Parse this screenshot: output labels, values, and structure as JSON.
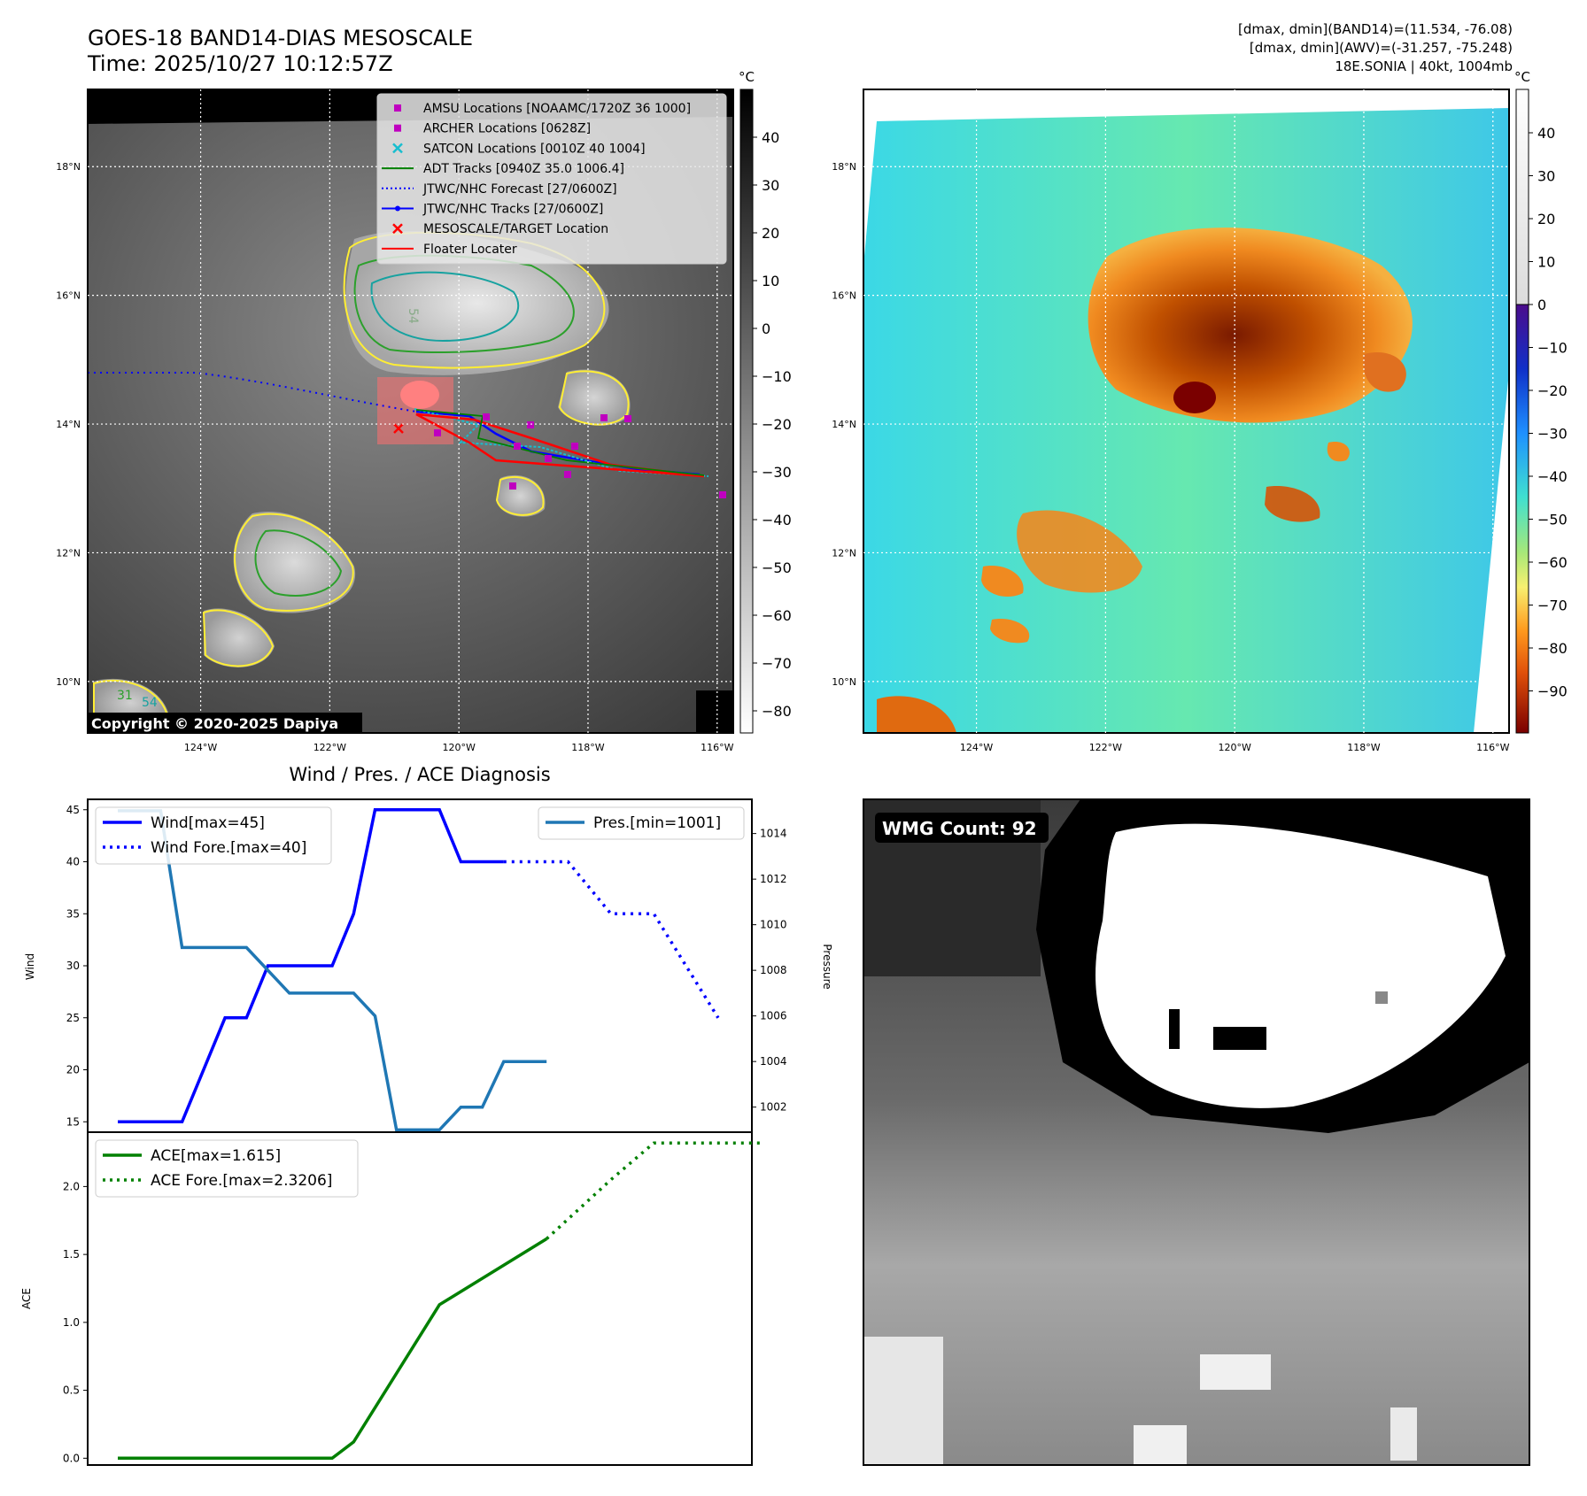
{
  "header": {
    "title_line1": "GOES-18 BAND14-DIAS MESOSCALE",
    "title_line2": "Time: 2025/10/27 10:12:57Z",
    "info_line1": "[dmax, dmin](BAND14)=(11.534, -76.08)",
    "info_line2": "[dmax, dmin](AWV)=(-31.257, -75.248)",
    "info_line3": "18E.SONIA | 40kt, 1004mb"
  },
  "map": {
    "lat_labels": [
      "18°N",
      "16°N",
      "14°N",
      "12°N",
      "10°N"
    ],
    "lat_values": [
      18,
      16,
      14,
      12,
      10
    ],
    "lon_labels": [
      "124°W",
      "122°W",
      "120°W",
      "118°W",
      "116°W"
    ],
    "lon_values": [
      -124,
      -122,
      -120,
      -118,
      -116
    ],
    "lat_range": [
      9.2,
      19.2
    ],
    "lon_range": [
      -125.75,
      -115.75
    ],
    "copyright": "Copyright © 2020-2025 Dapiya",
    "contour_label_1": "54",
    "contour_label_2": "31",
    "contour_label_3": "54",
    "legend": [
      {
        "label": "AMSU Locations [NOAAMC/1720Z 36 1000]",
        "marker": "square",
        "color": "#bf00bf"
      },
      {
        "label": "ARCHER Locations [0628Z]",
        "marker": "square",
        "color": "#bf00bf"
      },
      {
        "label": "SATCON Locations [0010Z 40 1004]",
        "marker": "x",
        "color": "#17becf"
      },
      {
        "label": "ADT Tracks [0940Z 35.0 1006.4]",
        "marker": "line",
        "color": "#008000"
      },
      {
        "label": "JTWC/NHC Forecast [27/0600Z]",
        "marker": "dotted",
        "color": "#0000ff"
      },
      {
        "label": "JTWC/NHC Tracks [27/0600Z]",
        "marker": "line-dot",
        "color": "#0000ff"
      },
      {
        "label": "MESOSCALE/TARGET Location",
        "marker": "x",
        "color": "#ff0000"
      },
      {
        "label": "Floater Locater",
        "marker": "line",
        "color": "#ff0000"
      }
    ],
    "colorbar_gray": {
      "unit": "°C",
      "ticks": [
        "40",
        "30",
        "20",
        "10",
        "0",
        "−10",
        "−20",
        "−30",
        "−40",
        "−50",
        "−60",
        "−70",
        "−80"
      ]
    },
    "colorbar_color": {
      "unit": "°C",
      "ticks": [
        "40",
        "30",
        "20",
        "10",
        "0",
        "−10",
        "−20",
        "−30",
        "−40",
        "−50",
        "−60",
        "−70",
        "−80",
        "−90"
      ]
    }
  },
  "wmg": {
    "label": "WMG Count: 92"
  },
  "chart_data": [
    {
      "type": "line",
      "title": "Wind / Pres. / ACE Diagnosis",
      "ylabel": "Wind",
      "y2label": "Pressure",
      "ylim": [
        14,
        46
      ],
      "y2lim": [
        1000.9,
        1015.5
      ],
      "yticks": [
        15,
        20,
        25,
        30,
        35,
        40,
        45
      ],
      "y2ticks": [
        1002,
        1004,
        1006,
        1008,
        1010,
        1012,
        1014
      ],
      "series": [
        {
          "name": "Wind[max=45]",
          "color": "#0000ff",
          "style": "solid",
          "x": [
            0,
            3,
            5,
            6,
            7,
            10,
            11,
            12,
            15,
            16,
            18
          ],
          "values": [
            15,
            15,
            25,
            25,
            30,
            30,
            35,
            45,
            45,
            40,
            40
          ]
        },
        {
          "name": "Wind Fore.[max=40]",
          "color": "#0000ff",
          "style": "dotted",
          "x": [
            18,
            21,
            23,
            25,
            28
          ],
          "values": [
            40,
            40,
            35,
            35,
            25
          ]
        },
        {
          "name": "Pres.[min=1001]",
          "color": "#1f77b4",
          "style": "solid",
          "axis": "right",
          "x": [
            0,
            2,
            3,
            6,
            8,
            11,
            12,
            13,
            15,
            16,
            17,
            18,
            20
          ],
          "values": [
            1015,
            1015,
            1009,
            1009,
            1007,
            1007,
            1006,
            1001,
            1001,
            1002,
            1002,
            1004,
            1004
          ]
        }
      ],
      "legend_left": "upper-left",
      "legend_right": "upper-right"
    },
    {
      "type": "line",
      "ylabel": "ACE",
      "ylim": [
        -0.05,
        2.4
      ],
      "yticks": [
        0.0,
        0.5,
        1.0,
        1.5,
        2.0
      ],
      "series": [
        {
          "name": "ACE[max=1.615]",
          "color": "#008000",
          "style": "solid",
          "x": [
            0,
            10,
            11,
            15,
            20
          ],
          "values": [
            0,
            0,
            0.12,
            1.13,
            1.615
          ]
        },
        {
          "name": "ACE Fore.[max=2.3206]",
          "color": "#008000",
          "style": "dotted",
          "x": [
            20,
            23,
            25,
            30
          ],
          "values": [
            1.615,
            2.05,
            2.3206,
            2.3206
          ]
        }
      ],
      "legend_left": "upper-left"
    }
  ]
}
